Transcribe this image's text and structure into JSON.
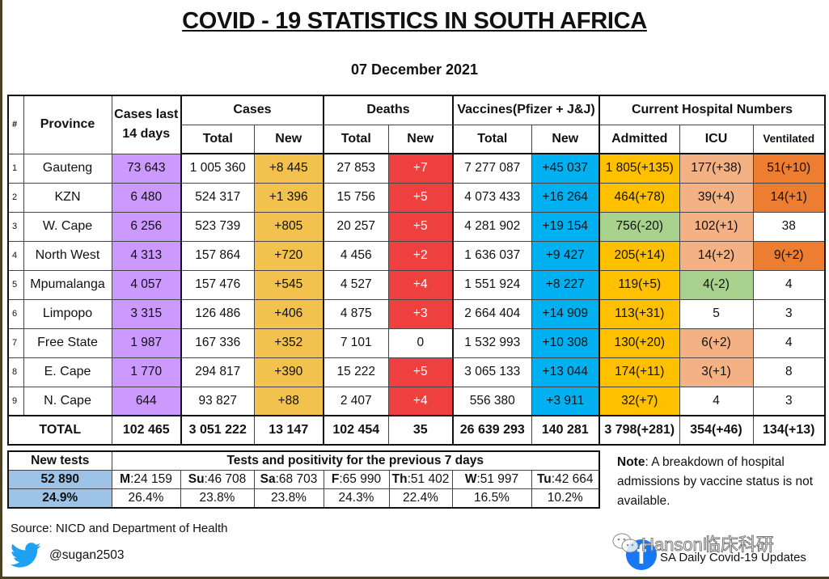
{
  "title": "COVID - 19 STATISTICS IN SOUTH AFRICA",
  "date": "07 December 2021",
  "colors": {
    "cases_14d": "#cc99ff",
    "cases_new": "#f2c14e",
    "deaths_new": "#ef4040",
    "vaccines_new": "#00b0f0",
    "admitted": "#ffc000",
    "icu_increase": "#f4b183",
    "ventilated_increase": "#ed7d31",
    "decrease": "#a9d18e",
    "new_tests": "#9dc3e6"
  },
  "headers": {
    "index": "#",
    "province": "Province",
    "cases_14d_line1": "Cases last",
    "cases_14d_line2": "14 days",
    "cases": "Cases",
    "deaths": "Deaths",
    "vaccines": "Vaccines(Pfizer + J&J)",
    "hospital": "Current Hospital Numbers",
    "total": "Total",
    "new": "New",
    "admitted": "Admitted",
    "icu": "ICU",
    "ventilated": "Ventilated"
  },
  "rows": [
    {
      "idx": "1",
      "province": "Gauteng",
      "cases_14d": "73 643",
      "cases_total": "1 005 360",
      "cases_new": "+8 445",
      "deaths_total": "27 853",
      "deaths_new": "+7",
      "vacc_total": "7 277 087",
      "vacc_new": "+45 037",
      "admitted": "1 805(+135)",
      "icu": "177(+38)",
      "ventilated": "51(+10)"
    },
    {
      "idx": "2",
      "province": "KZN",
      "cases_14d": "6 480",
      "cases_total": "524 317",
      "cases_new": "+1 396",
      "deaths_total": "15 756",
      "deaths_new": "+5",
      "vacc_total": "4 073 433",
      "vacc_new": "+16 264",
      "admitted": "464(+78)",
      "icu": "39(+4)",
      "ventilated": "14(+1)"
    },
    {
      "idx": "3",
      "province": "W. Cape",
      "cases_14d": "6 256",
      "cases_total": "523 739",
      "cases_new": "+805",
      "deaths_total": "20 257",
      "deaths_new": "+5",
      "vacc_total": "4 281 902",
      "vacc_new": "+19 154",
      "admitted": "756(-20)",
      "icu": "102(+1)",
      "ventilated": "38"
    },
    {
      "idx": "4",
      "province": "North West",
      "cases_14d": "4 313",
      "cases_total": "157 864",
      "cases_new": "+720",
      "deaths_total": "4 456",
      "deaths_new": "+2",
      "vacc_total": "1 636 037",
      "vacc_new": "+9 427",
      "admitted": "205(+14)",
      "icu": "14(+2)",
      "ventilated": "9(+2)"
    },
    {
      "idx": "5",
      "province": "Mpumalanga",
      "cases_14d": "4 057",
      "cases_total": "157 476",
      "cases_new": "+545",
      "deaths_total": "4 527",
      "deaths_new": "+4",
      "vacc_total": "1 551 924",
      "vacc_new": "+8 227",
      "admitted": "119(+5)",
      "icu": "4(-2)",
      "ventilated": "4"
    },
    {
      "idx": "6",
      "province": "Limpopo",
      "cases_14d": "3 315",
      "cases_total": "126 486",
      "cases_new": "+406",
      "deaths_total": "4 875",
      "deaths_new": "+3",
      "vacc_total": "2 664 404",
      "vacc_new": "+14 909",
      "admitted": "113(+31)",
      "icu": "5",
      "ventilated": "3"
    },
    {
      "idx": "7",
      "province": "Free State",
      "cases_14d": "1 987",
      "cases_total": "167 336",
      "cases_new": "+352",
      "deaths_total": "7 101",
      "deaths_new": "0",
      "vacc_total": "1 532 993",
      "vacc_new": "+10 308",
      "admitted": "130(+20)",
      "icu": "6(+2)",
      "ventilated": "4"
    },
    {
      "idx": "8",
      "province": "E. Cape",
      "cases_14d": "1 770",
      "cases_total": "294 817",
      "cases_new": "+390",
      "deaths_total": "15 222",
      "deaths_new": "+5",
      "vacc_total": "3 065 133",
      "vacc_new": "+13 044",
      "admitted": "174(+11)",
      "icu": "3(+1)",
      "ventilated": "8"
    },
    {
      "idx": "9",
      "province": "N. Cape",
      "cases_14d": "644",
      "cases_total": "93 827",
      "cases_new": "+88",
      "deaths_total": "2 407",
      "deaths_new": "+4",
      "vacc_total": "556 380",
      "vacc_new": "+3 911",
      "admitted": "32(+7)",
      "icu": "4",
      "ventilated": "3"
    }
  ],
  "cell_colors": [
    {
      "deaths_new": "red",
      "icu": "salmon",
      "ventilated": "orange",
      "admitted": "amber"
    },
    {
      "deaths_new": "red",
      "icu": "salmon",
      "ventilated": "orange",
      "admitted": "amber"
    },
    {
      "deaths_new": "red",
      "icu": "salmon",
      "ventilated": "white",
      "admitted": "green"
    },
    {
      "deaths_new": "red",
      "icu": "salmon",
      "ventilated": "orange",
      "admitted": "amber"
    },
    {
      "deaths_new": "red",
      "icu": "green",
      "ventilated": "white",
      "admitted": "amber"
    },
    {
      "deaths_new": "red",
      "icu": "white",
      "ventilated": "white",
      "admitted": "amber"
    },
    {
      "deaths_new": "white",
      "icu": "salmon",
      "ventilated": "white",
      "admitted": "amber"
    },
    {
      "deaths_new": "red",
      "icu": "salmon",
      "ventilated": "white",
      "admitted": "amber"
    },
    {
      "deaths_new": "red",
      "icu": "white",
      "ventilated": "white",
      "admitted": "amber"
    }
  ],
  "totals": {
    "label": "TOTAL",
    "cases_14d": "102 465",
    "cases_total": "3 051 222",
    "cases_new": "13 147",
    "deaths_total": "102 454",
    "deaths_new": "35",
    "vacc_total": "26 639 293",
    "vacc_new": "140 281",
    "admitted": "3 798(+281)",
    "icu": "354(+46)",
    "ventilated": "134(+13)"
  },
  "tests": {
    "new_tests_label": "New tests",
    "new_tests_value": "52 890",
    "positivity_value": "24.9%",
    "period_label": "Tests and positivity for the previous 7 days",
    "days": [
      {
        "day": "M",
        "tests": ":24 159",
        "positivity": "26.4%"
      },
      {
        "day": "Su",
        "tests": ":46 708",
        "positivity": "23.8%"
      },
      {
        "day": "Sa",
        "tests": ":68 703",
        "positivity": "23.8%"
      },
      {
        "day": "F",
        "tests": ":65 990",
        "positivity": "24.3%"
      },
      {
        "day": "Th",
        "tests": ":51 402",
        "positivity": "22.4%"
      },
      {
        "day": "W",
        "tests": ":51 997",
        "positivity": "16.5%"
      },
      {
        "day": "Tu",
        "tests": ":42 664",
        "positivity": "10.2%"
      }
    ]
  },
  "note": {
    "label": "Note",
    "text": ": A breakdown of hospital admissions by vaccine status is not available."
  },
  "footer": {
    "source": "Source: NICD and Department of Health",
    "twitter_handle": "@sugan2503",
    "facebook_page": "SA Daily Covid-19 Updates",
    "watermark": "Hanson临床科研",
    "twitter_icon": "twitter-bird-icon",
    "facebook_icon": "facebook-icon"
  }
}
